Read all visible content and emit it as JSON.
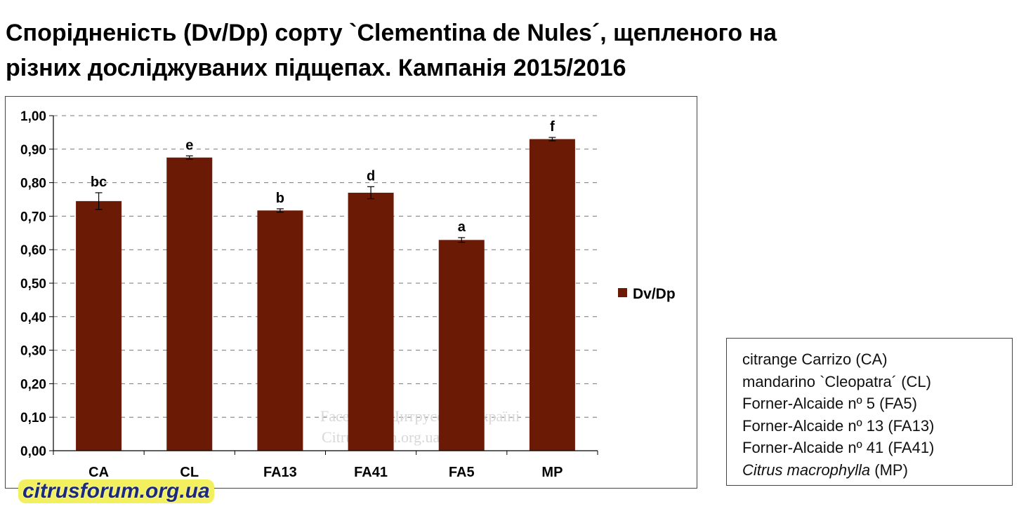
{
  "title": {
    "line1": "Спорідненість (Dv/Dp) сорту `Clementina de Nules´, щепленого на",
    "line2": "різних досліджуваних підщепах. Кампанія 2015/2016"
  },
  "chart_data": {
    "type": "bar",
    "categories": [
      "CA",
      "CL",
      "FA13",
      "FA41",
      "FA5",
      "MP"
    ],
    "series": [
      {
        "name": "Dv/Dp",
        "values": [
          0.745,
          0.875,
          0.717,
          0.77,
          0.629,
          0.93
        ],
        "errors": [
          0.025,
          0.005,
          0.005,
          0.018,
          0.007,
          0.005
        ],
        "annotations": [
          "bc",
          "e",
          "b",
          "d",
          "a",
          "f"
        ]
      }
    ],
    "yticks": [
      "0,00",
      "0,10",
      "0,20",
      "0,30",
      "0,40",
      "0,50",
      "0,60",
      "0,70",
      "0,80",
      "0,90",
      "1,00"
    ],
    "ylim": [
      0,
      1.0
    ],
    "grid": true,
    "legend_position": "right",
    "bar_color": "#6b1a06"
  },
  "legend_box": {
    "items": [
      "citrange Carrizo (CA)",
      "mandarino `Cleopatra´ (CL)",
      "Forner-Alcaide nº 5 (FA5)",
      "Forner-Alcaide nº 13 (FA13)",
      "Forner-Alcaide nº 41 (FA41)"
    ],
    "last_italic": "Citrus macrophylla",
    "last_rest": " (MP)"
  },
  "watermarks": {
    "center_line1": "Facebook: Цитрусові в Україні",
    "center_line2": "Citrusforum.org.ua",
    "bottom": "citrusforum.org.ua"
  }
}
